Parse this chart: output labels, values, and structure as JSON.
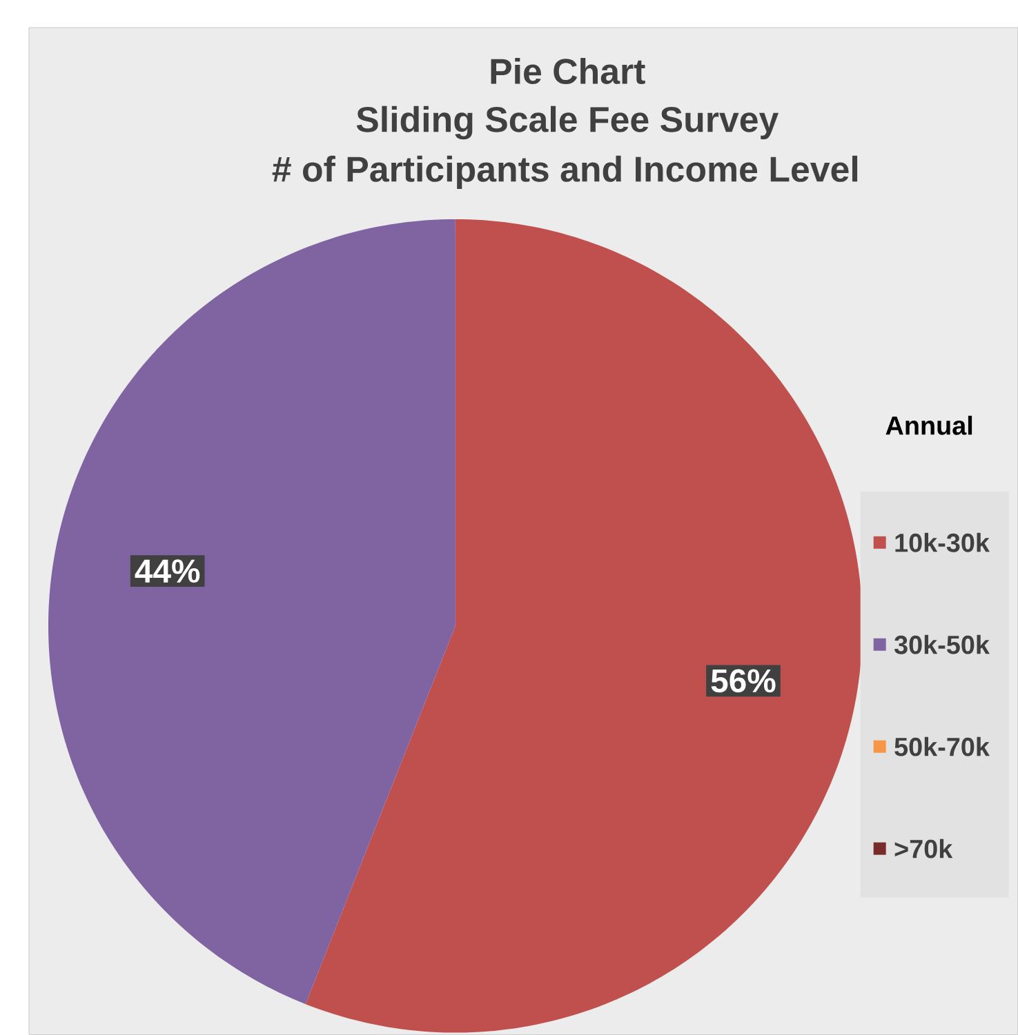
{
  "chart_data": {
    "type": "pie",
    "title": "Pie Chart",
    "subtitle": "Sliding Scale Fee Survey",
    "annotations": [
      "# of Participants and Income Level"
    ],
    "legend_title": "Annual",
    "categories": [
      "10k-30k",
      "30k-50k",
      "50k-70k",
      ">70k"
    ],
    "values": [
      56,
      44,
      0,
      0
    ],
    "colors": [
      "#c0504d",
      "#8064a2",
      "#f79646",
      "#772c2a"
    ],
    "value_labels": [
      "56%",
      "44%",
      null,
      null
    ],
    "legend": "right"
  }
}
